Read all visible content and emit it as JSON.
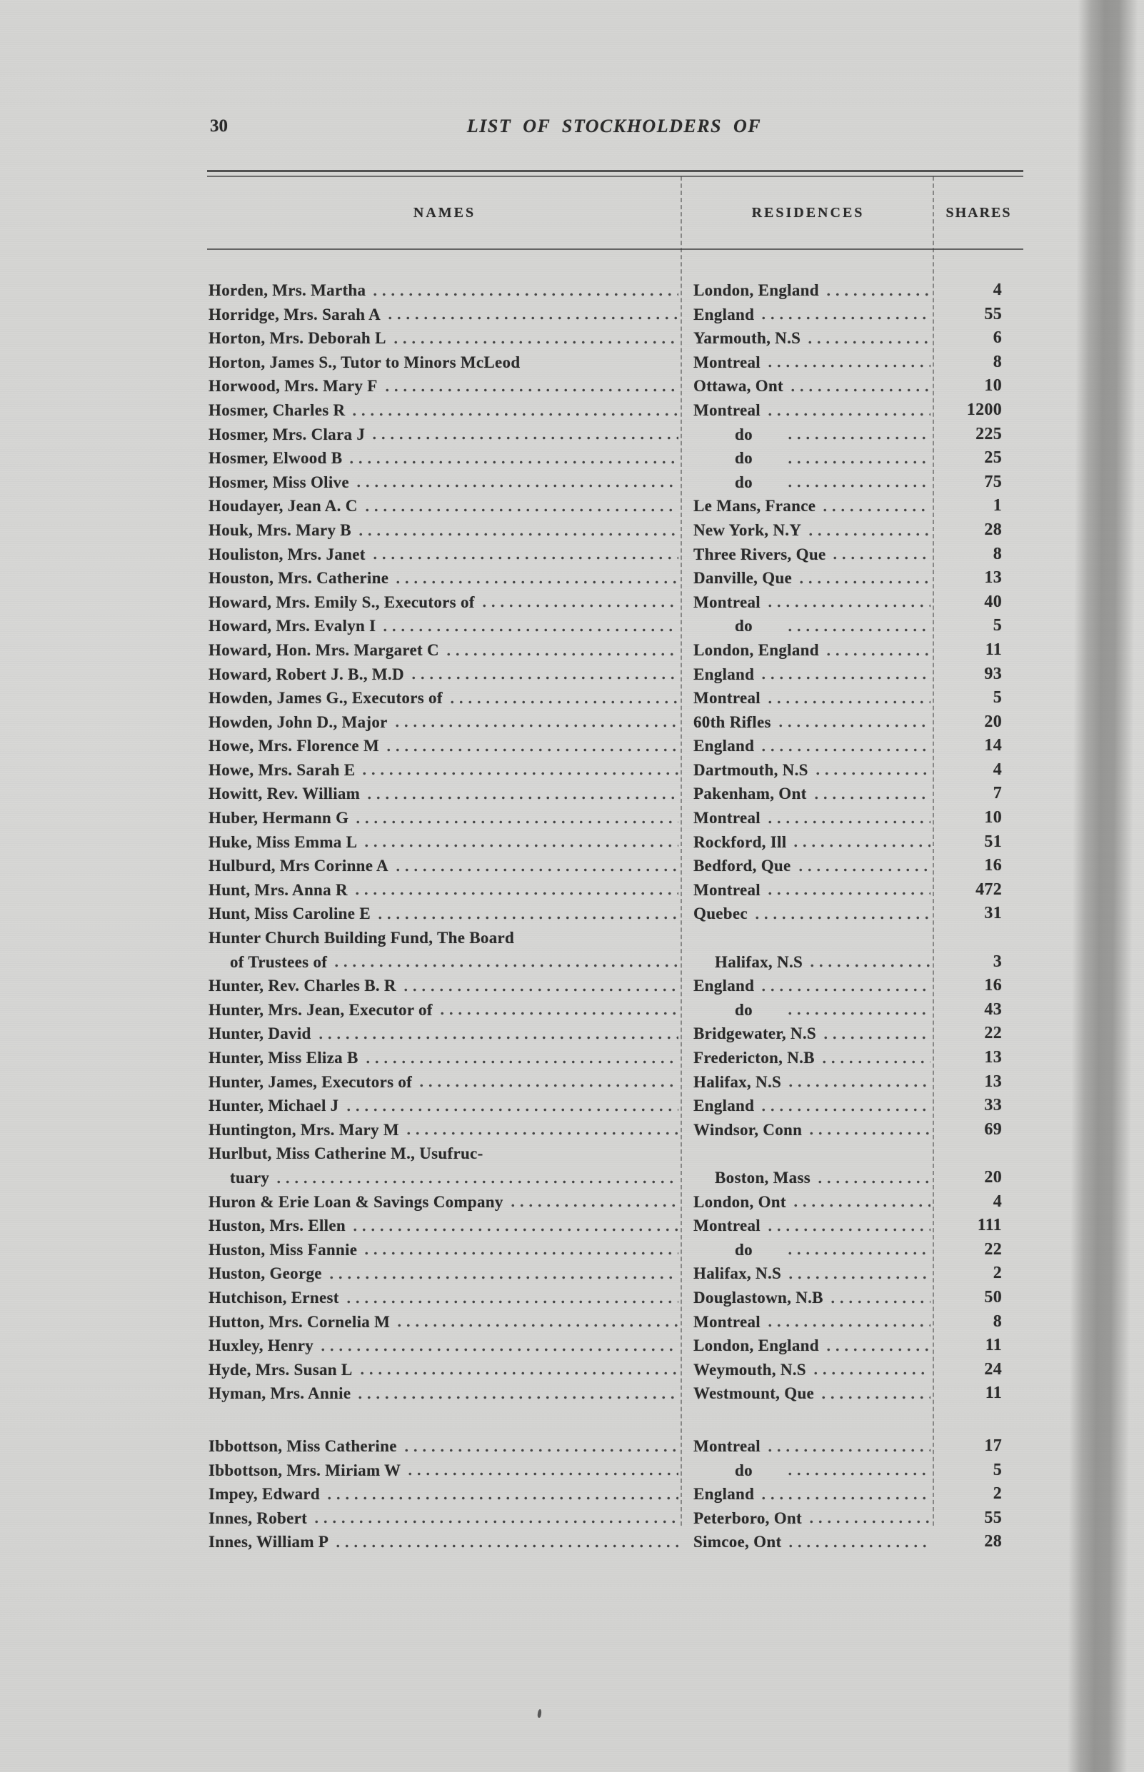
{
  "page": {
    "number": "30",
    "title": "LIST OF STOCKHOLDERS OF"
  },
  "colors": {
    "paper": "#d4d4d2",
    "ink": "#2b2b2b",
    "gutter_band": "#a3a3a1"
  },
  "table": {
    "columns": [
      "NAMES",
      "RESIDENCES",
      "SHARES"
    ],
    "rows": [
      {
        "name": "Horden, Mrs. Martha",
        "residence": "London, England",
        "shares": "4"
      },
      {
        "name": "Horridge, Mrs. Sarah A",
        "residence": "England",
        "shares": "55"
      },
      {
        "name": "Horton, Mrs. Deborah L",
        "residence": "Yarmouth, N.S",
        "shares": "6"
      },
      {
        "name": "Horton, James S., Tutor to Minors McLeod",
        "residence": "Montreal",
        "shares": "8",
        "no_leader": true
      },
      {
        "name": "Horwood, Mrs. Mary F",
        "residence": "Ottawa, Ont",
        "shares": "10"
      },
      {
        "name": "Hosmer, Charles R",
        "residence": "Montreal",
        "shares": "1200"
      },
      {
        "name": "Hosmer, Mrs. Clara J",
        "residence": "do",
        "shares": "225"
      },
      {
        "name": "Hosmer, Elwood B",
        "residence": "do",
        "shares": "25"
      },
      {
        "name": "Hosmer, Miss Olive",
        "residence": "do",
        "shares": "75"
      },
      {
        "name": "Houdayer, Jean A. C",
        "residence": "Le Mans, France",
        "shares": "1"
      },
      {
        "name": "Houk, Mrs. Mary B",
        "residence": "New York, N.Y",
        "shares": "28"
      },
      {
        "name": "Houliston, Mrs. Janet",
        "residence": "Three Rivers, Que",
        "shares": "8"
      },
      {
        "name": "Houston, Mrs. Catherine",
        "residence": "Danville, Que",
        "shares": "13"
      },
      {
        "name": "Howard, Mrs. Emily S., Executors of",
        "residence": "Montreal",
        "shares": "40"
      },
      {
        "name": "Howard, Mrs. Evalyn I",
        "residence": "do",
        "shares": "5"
      },
      {
        "name": "Howard, Hon. Mrs. Margaret C",
        "residence": "London, England",
        "shares": "11"
      },
      {
        "name": "Howard, Robert J. B., M.D",
        "residence": "England",
        "shares": "93"
      },
      {
        "name": "Howden, James G., Executors of",
        "residence": "Montreal",
        "shares": "5"
      },
      {
        "name": "Howden, John D., Major",
        "residence": "60th Rifles",
        "shares": "20"
      },
      {
        "name": "Howe, Mrs. Florence M",
        "residence": "England",
        "shares": "14"
      },
      {
        "name": "Howe, Mrs. Sarah E",
        "residence": "Dartmouth, N.S",
        "shares": "4"
      },
      {
        "name": "Howitt, Rev. William",
        "residence": "Pakenham, Ont",
        "shares": "7"
      },
      {
        "name": "Huber, Hermann G",
        "residence": "Montreal",
        "shares": "10"
      },
      {
        "name": "Huke, Miss Emma L",
        "residence": "Rockford, Ill",
        "shares": "51"
      },
      {
        "name": "Hulburd, Mrs Corinne A",
        "residence": "Bedford, Que",
        "shares": "16"
      },
      {
        "name": "Hunt, Mrs. Anna R",
        "residence": "Montreal",
        "shares": "472"
      },
      {
        "name": "Hunt, Miss Caroline E",
        "residence": "Quebec",
        "shares": "31"
      },
      {
        "name_line1": "Hunter Church Building Fund, The Board",
        "name_line2": "of Trustees of",
        "residence": "Halifax, N.S",
        "shares": "3"
      },
      {
        "name": "Hunter, Rev. Charles B. R",
        "residence": "England",
        "shares": "16"
      },
      {
        "name": "Hunter, Mrs. Jean, Executor of",
        "residence": "do",
        "shares": "43"
      },
      {
        "name": "Hunter, David",
        "residence": "Bridgewater, N.S",
        "shares": "22"
      },
      {
        "name": "Hunter, Miss Eliza B",
        "residence": "Fredericton, N.B",
        "shares": "13"
      },
      {
        "name": "Hunter, James, Executors of",
        "residence": "Halifax, N.S",
        "shares": "13"
      },
      {
        "name": "Hunter, Michael J",
        "residence": "England",
        "shares": "33"
      },
      {
        "name": "Huntington, Mrs. Mary M",
        "residence": "Windsor, Conn",
        "shares": "69"
      },
      {
        "name_line1": "Hurlbut, Miss Catherine M., Usufruc-",
        "name_line2": "tuary",
        "residence": "Boston, Mass",
        "shares": "20"
      },
      {
        "name": "Huron & Erie Loan & Savings Company",
        "residence": "London, Ont",
        "shares": "4"
      },
      {
        "name": "Huston, Mrs. Ellen",
        "residence": "Montreal",
        "shares": "111"
      },
      {
        "name": "Huston, Miss Fannie",
        "residence": "do",
        "shares": "22"
      },
      {
        "name": "Huston, George",
        "residence": "Halifax, N.S",
        "shares": "2"
      },
      {
        "name": "Hutchison, Ernest",
        "residence": "Douglastown, N.B",
        "shares": "50"
      },
      {
        "name": "Hutton, Mrs. Cornelia M",
        "residence": "Montreal",
        "shares": "8"
      },
      {
        "name": "Huxley, Henry",
        "residence": "London, England",
        "shares": "11"
      },
      {
        "name": "Hyde, Mrs. Susan L",
        "residence": "Weymouth, N.S",
        "shares": "24"
      },
      {
        "name": "Hyman, Mrs. Annie",
        "residence": "Westmount, Que",
        "shares": "11"
      },
      {
        "name": "Ibbottson, Miss Catherine",
        "residence": "Montreal",
        "shares": "17",
        "gap_before": true
      },
      {
        "name": "Ibbottson, Mrs. Miriam W",
        "residence": "do",
        "shares": "5"
      },
      {
        "name": "Impey, Edward",
        "residence": "England",
        "shares": "2"
      },
      {
        "name": "Innes, Robert",
        "residence": "Peterboro, Ont",
        "shares": "55"
      },
      {
        "name": "Innes, William P",
        "residence": "Simcoe, Ont",
        "shares": "28"
      }
    ]
  }
}
